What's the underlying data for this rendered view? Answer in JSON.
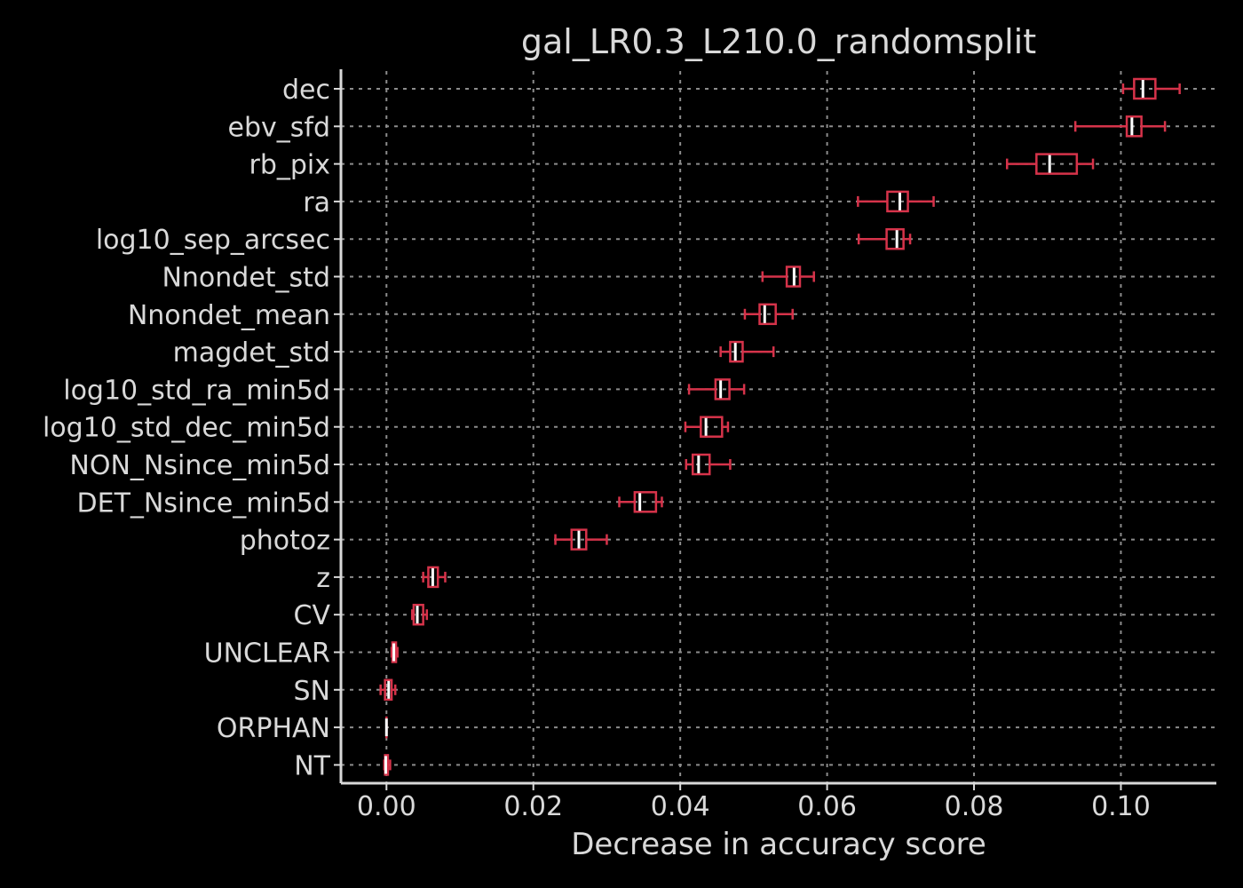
{
  "chart_data": {
    "type": "boxplot",
    "orientation": "horizontal",
    "title": "gal_LR0.3_L210.0_randomsplit",
    "xlabel": "Decrease in accuracy score",
    "ylabel": "",
    "xlim": [
      -0.0062,
      0.113
    ],
    "xticks": [
      "0.00",
      "0.02",
      "0.04",
      "0.06",
      "0.08",
      "0.10"
    ],
    "xtick_values": [
      0.0,
      0.02,
      0.04,
      0.06,
      0.08,
      0.1
    ],
    "grid": true,
    "colors": {
      "background": "#000000",
      "box": "#d6334a",
      "median": "#ffffff",
      "text": "#d9d9d9",
      "grid": "#8c8c8c",
      "axis": "#d9d9d9"
    },
    "features": [
      {
        "name": "dec",
        "whisker_low": 0.1003,
        "q1": 0.1018,
        "median": 0.103,
        "q3": 0.1047,
        "whisker_high": 0.108
      },
      {
        "name": "ebv_sfd",
        "whisker_low": 0.0938,
        "q1": 0.1008,
        "median": 0.1015,
        "q3": 0.1028,
        "whisker_high": 0.106
      },
      {
        "name": "rb_pix",
        "whisker_low": 0.0845,
        "q1": 0.0885,
        "median": 0.0903,
        "q3": 0.094,
        "whisker_high": 0.0962
      },
      {
        "name": "ra",
        "whisker_low": 0.0642,
        "q1": 0.0682,
        "median": 0.0699,
        "q3": 0.071,
        "whisker_high": 0.0745
      },
      {
        "name": "log10_sep_arcsec",
        "whisker_low": 0.0643,
        "q1": 0.0681,
        "median": 0.0695,
        "q3": 0.0704,
        "whisker_high": 0.0713
      },
      {
        "name": "Nnondet_std",
        "whisker_low": 0.0512,
        "q1": 0.0545,
        "median": 0.0555,
        "q3": 0.0563,
        "whisker_high": 0.0582
      },
      {
        "name": "Nnondet_mean",
        "whisker_low": 0.0488,
        "q1": 0.0508,
        "median": 0.0515,
        "q3": 0.053,
        "whisker_high": 0.0553
      },
      {
        "name": "magdet_std",
        "whisker_low": 0.0455,
        "q1": 0.0468,
        "median": 0.0475,
        "q3": 0.0485,
        "whisker_high": 0.0527
      },
      {
        "name": "log10_std_ra_min5d",
        "whisker_low": 0.0412,
        "q1": 0.0448,
        "median": 0.0455,
        "q3": 0.0467,
        "whisker_high": 0.0487
      },
      {
        "name": "log10_std_dec_min5d",
        "whisker_low": 0.0407,
        "q1": 0.0428,
        "median": 0.0435,
        "q3": 0.0457,
        "whisker_high": 0.0465
      },
      {
        "name": "NON_Nsince_min5d",
        "whisker_low": 0.0408,
        "q1": 0.0417,
        "median": 0.0425,
        "q3": 0.044,
        "whisker_high": 0.0468
      },
      {
        "name": "DET_Nsince_min5d",
        "whisker_low": 0.0317,
        "q1": 0.0338,
        "median": 0.0345,
        "q3": 0.0367,
        "whisker_high": 0.0375
      },
      {
        "name": "photoz",
        "whisker_low": 0.023,
        "q1": 0.0252,
        "median": 0.0262,
        "q3": 0.0272,
        "whisker_high": 0.03
      },
      {
        "name": "z",
        "whisker_low": 0.005,
        "q1": 0.0057,
        "median": 0.0063,
        "q3": 0.007,
        "whisker_high": 0.008
      },
      {
        "name": "CV",
        "whisker_low": 0.0035,
        "q1": 0.0037,
        "median": 0.0042,
        "q3": 0.005,
        "whisker_high": 0.0055
      },
      {
        "name": "UNCLEAR",
        "whisker_low": 0.0007,
        "q1": 0.0008,
        "median": 0.001,
        "q3": 0.0013,
        "whisker_high": 0.0015
      },
      {
        "name": "SN",
        "whisker_low": -0.0008,
        "q1": -0.0002,
        "median": 0.0003,
        "q3": 0.0007,
        "whisker_high": 0.0012
      },
      {
        "name": "ORPHAN",
        "whisker_low": 0.0,
        "q1": 0.0,
        "median": 0.0,
        "q3": 0.0,
        "whisker_high": 0.0
      },
      {
        "name": "NT",
        "whisker_low": -0.0003,
        "q1": -0.0002,
        "median": -0.0001,
        "q3": 0.0002,
        "whisker_high": 0.0005
      }
    ]
  }
}
